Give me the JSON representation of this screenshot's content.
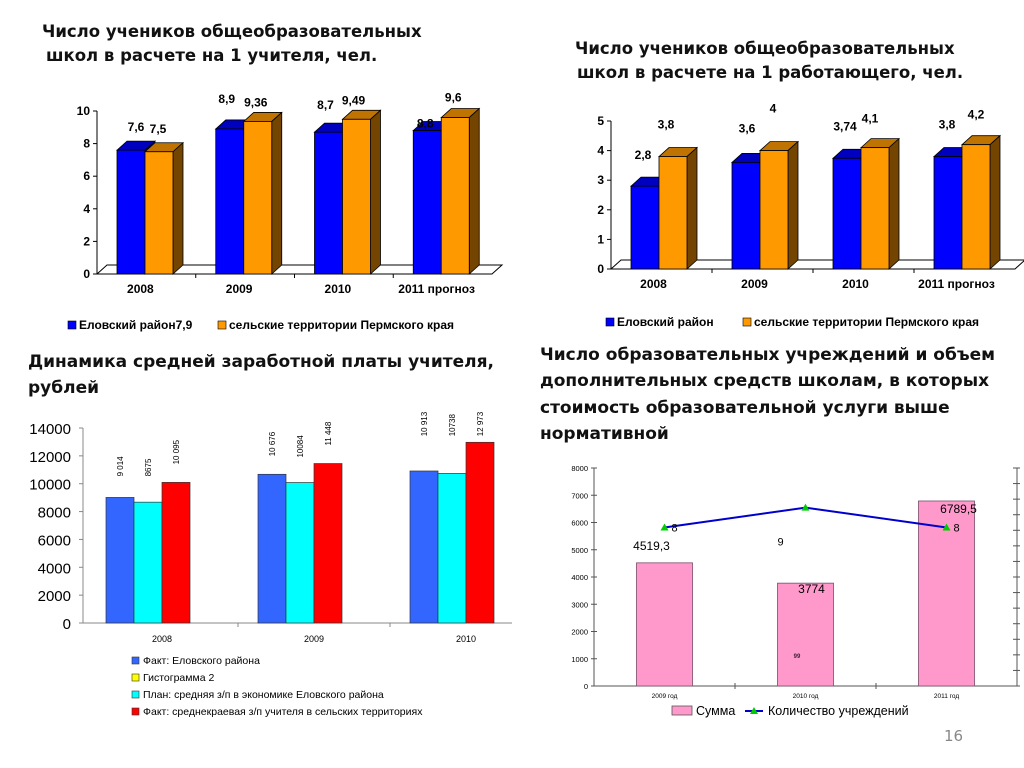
{
  "titles": {
    "chart1": [
      "Число учеников общеобразовательных",
      "школ в расчете на 1 учителя, чел."
    ],
    "chart2": [
      "Число учеников общеобразовательных",
      "школ в расчете на 1 работающего, чел."
    ],
    "chart3": [
      "Динамика средней заработной платы учителя,",
      "рублей"
    ],
    "chart4": [
      "Число образовательных учреждений и объем",
      "дополнительных средств школам, в которых",
      "стоимость образовательной услуги выше",
      "нормативной"
    ]
  },
  "page_number": "16",
  "colors": {
    "blue": "#0000ff",
    "orange": "#ff9900",
    "royal_blue": "#3366ff",
    "cyan": "#00ffff",
    "red": "#ff0000",
    "yellow": "#ffff00",
    "pink": "#ff99cc",
    "line_blue": "#0000cc",
    "marker_green": "#00cc00"
  },
  "chart_data": [
    {
      "type": "bar",
      "style": "3d-clustered",
      "title": "Число учеников общеобразовательных школ в расчете на 1 учителя, чел.",
      "categories": [
        "2008",
        "2009",
        "2010",
        "2011 прогноз"
      ],
      "series": [
        {
          "name": "Еловский район7,9",
          "values": [
            7.6,
            8.9,
            8.7,
            8.8
          ],
          "labels": [
            "7,6",
            "8,9",
            "8,7",
            "8,8"
          ],
          "color": "#0000ff"
        },
        {
          "name": "сельские территории Пермского края",
          "values": [
            7.5,
            9.36,
            9.49,
            9.6
          ],
          "labels": [
            "7,5",
            "9,36",
            "9,49",
            "9,6"
          ],
          "color": "#ff9900"
        }
      ],
      "yticks": [
        "0",
        "2",
        "4",
        "6",
        "8",
        "10"
      ],
      "ylim": [
        0,
        10
      ],
      "legend": "bottom",
      "xlabel": "",
      "ylabel": ""
    },
    {
      "type": "bar",
      "style": "3d-clustered",
      "title": "Число учеников общеобразовательных школ в расчете на 1 работающего, чел.",
      "categories": [
        "2008",
        "2009",
        "2010",
        "2011 прогноз"
      ],
      "series": [
        {
          "name": "Еловский район",
          "values": [
            2.8,
            3.6,
            3.74,
            3.8
          ],
          "labels": [
            "2,8",
            "3,6",
            "3,74",
            "3,8"
          ],
          "color": "#0000ff"
        },
        {
          "name": "сельские территории Пермского края",
          "values": [
            3.8,
            4.0,
            4.1,
            4.2
          ],
          "labels": [
            "3,8",
            "4",
            "4,1",
            "4,2"
          ],
          "color": "#ff9900"
        }
      ],
      "yticks": [
        "0",
        "1",
        "2",
        "3",
        "4",
        "5"
      ],
      "ylim": [
        0,
        5
      ],
      "legend": "bottom",
      "xlabel": "",
      "ylabel": ""
    },
    {
      "type": "bar",
      "title": "Динамика средней заработной платы учителя, рублей",
      "categories": [
        "2008",
        "2009",
        "2010"
      ],
      "series": [
        {
          "name": "Факт: Еловского района",
          "values": [
            9014,
            10676,
            10913
          ],
          "labels": [
            "9 014",
            "10 676",
            "10 913"
          ],
          "color": "#3366ff"
        },
        {
          "name": "Гистограмма 2",
          "values": [
            null,
            null,
            null
          ],
          "labels": [
            "",
            "",
            ""
          ],
          "color": "#ffff00"
        },
        {
          "name": "План: средняя з/п в экономике Еловского района",
          "values": [
            8675,
            10084,
            10738
          ],
          "labels": [
            "8675",
            "10084",
            "10738"
          ],
          "color": "#00ffff"
        },
        {
          "name": "Факт: среднекраевая з/п учителя в сельских территориях",
          "values": [
            10095,
            11448,
            12973
          ],
          "labels": [
            "10 095",
            "11 448",
            "12 973"
          ],
          "color": "#ff0000"
        }
      ],
      "yticks": [
        "0",
        "2000",
        "4000",
        "6000",
        "8000",
        "10000",
        "12000",
        "14000"
      ],
      "ylim": [
        0,
        14000
      ],
      "legend": "bottom",
      "xlabel": "",
      "ylabel": ""
    },
    {
      "type": "bar",
      "combo": "bar+line",
      "title": "Число образовательных учреждений и объем дополнительных средств школам, в которых стоимость образовательной услуги выше нормативной",
      "categories": [
        "2009 год",
        "2010 год",
        "2011 год"
      ],
      "series": [
        {
          "name": "Сумма",
          "type": "bar",
          "values": [
            4519.3,
            3774,
            6789.5
          ],
          "labels": [
            "4519,3",
            "3774",
            "6789,5"
          ],
          "color": "#ff99cc"
        },
        {
          "name": "Количество учреждений",
          "type": "line",
          "axis": "secondary",
          "values": [
            8,
            9,
            8
          ],
          "labels": [
            "8",
            "9",
            "8"
          ],
          "color": "#0000cc",
          "marker_color": "#00cc00"
        }
      ],
      "stray_label": "99",
      "yticks": [
        "0",
        "1000",
        "2000",
        "3000",
        "4000",
        "5000",
        "6000",
        "7000",
        "8000"
      ],
      "ylim": [
        0,
        8000
      ],
      "y2lim": [
        0,
        11
      ],
      "legend": "bottom",
      "xlabel": "",
      "ylabel": ""
    }
  ]
}
